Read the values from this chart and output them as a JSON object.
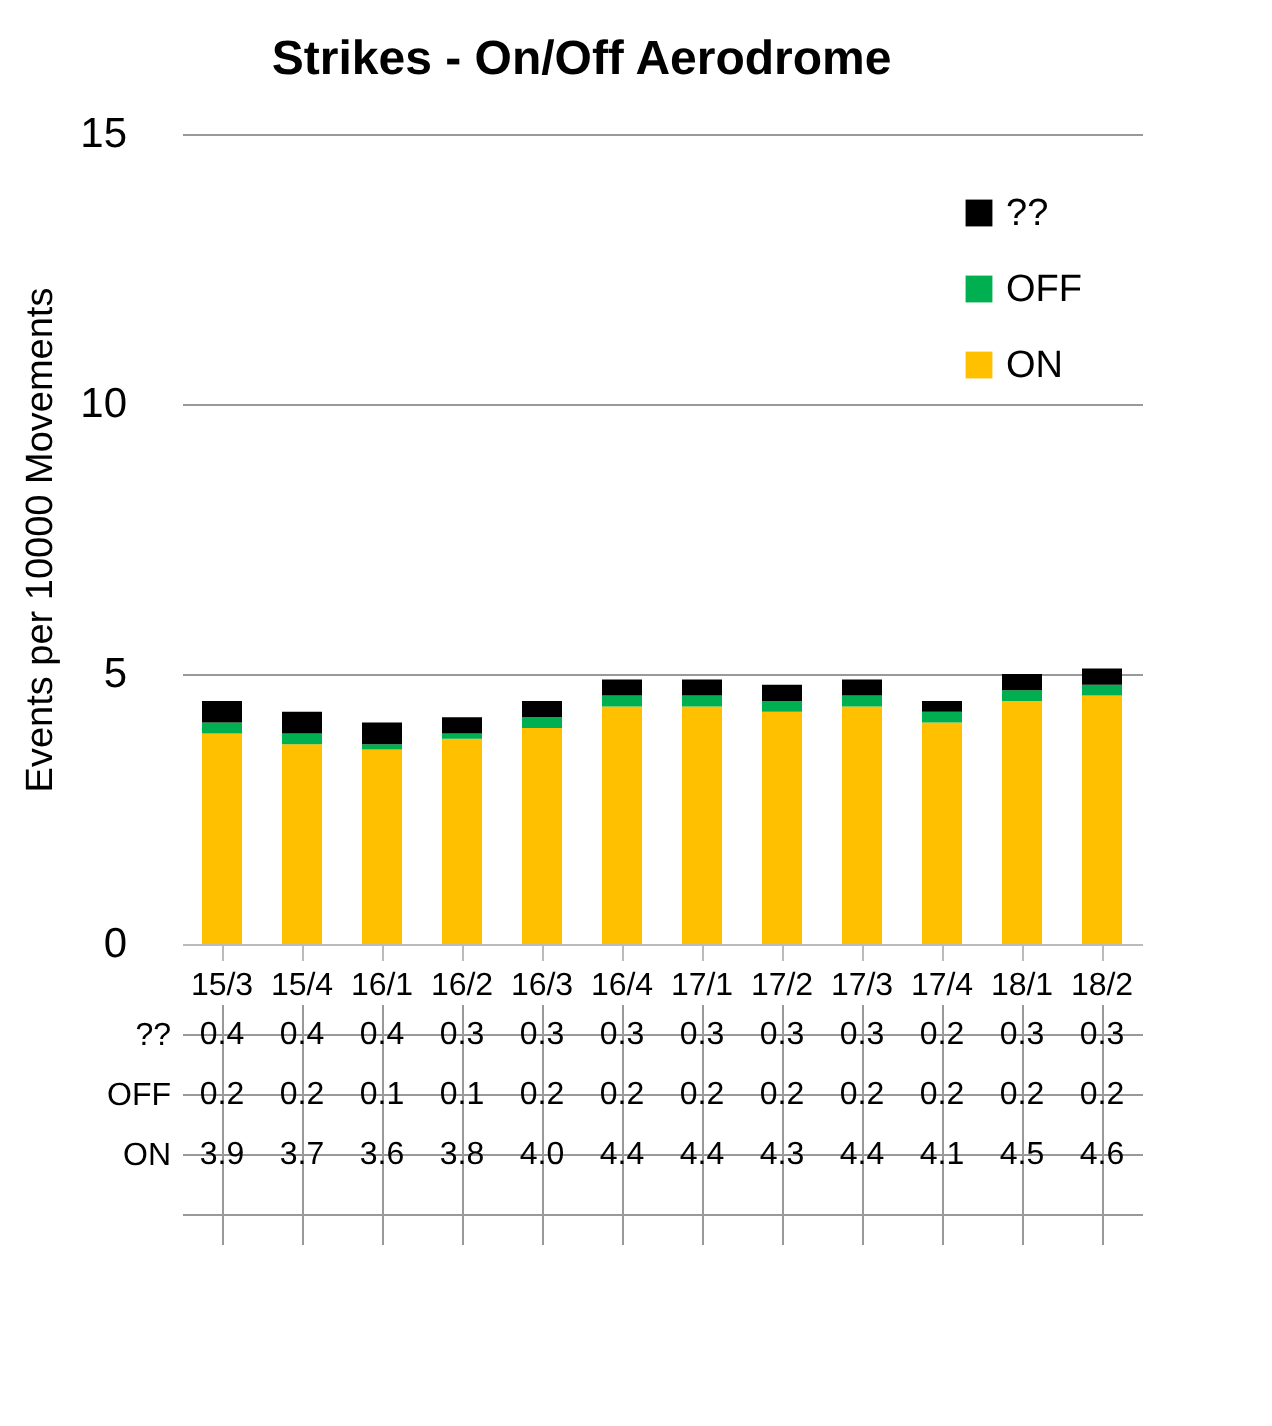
{
  "chart_data": {
    "type": "bar",
    "title": "Strikes - On/Off Aerodrome",
    "ylabel": "Events per 10000 Movements",
    "stacked": true,
    "categories": [
      "15/3",
      "15/4",
      "16/1",
      "16/2",
      "16/3",
      "16/4",
      "17/1",
      "17/2",
      "17/3",
      "17/4",
      "18/1",
      "18/2"
    ],
    "series": [
      {
        "name": "ON",
        "color": "#ffc000",
        "values": [
          3.9,
          3.7,
          3.6,
          3.8,
          4.0,
          4.4,
          4.4,
          4.3,
          4.4,
          4.1,
          4.5,
          4.6
        ],
        "value_labels": [
          "3.9",
          "3.7",
          "3.6",
          "3.8",
          "4.0",
          "4.4",
          "4.4",
          "4.3",
          "4.4",
          "4.1",
          "4.5",
          "4.6"
        ]
      },
      {
        "name": "OFF",
        "color": "#00b050",
        "values": [
          0.2,
          0.2,
          0.1,
          0.1,
          0.2,
          0.2,
          0.2,
          0.2,
          0.2,
          0.2,
          0.2,
          0.2
        ],
        "value_labels": [
          "0.2",
          "0.2",
          "0.1",
          "0.1",
          "0.2",
          "0.2",
          "0.2",
          "0.2",
          "0.2",
          "0.2",
          "0.2",
          "0.2"
        ]
      },
      {
        "name": "??",
        "color": "#000000",
        "values": [
          0.4,
          0.4,
          0.4,
          0.3,
          0.3,
          0.3,
          0.3,
          0.3,
          0.3,
          0.2,
          0.3,
          0.3
        ],
        "value_labels": [
          "0.4",
          "0.4",
          "0.4",
          "0.3",
          "0.3",
          "0.3",
          "0.3",
          "0.3",
          "0.3",
          "0.2",
          "0.3",
          "0.3"
        ]
      }
    ],
    "ylim": [
      0,
      15
    ],
    "yticks": [
      0,
      5,
      10,
      15
    ],
    "grid": "y",
    "legend": "top right"
  }
}
